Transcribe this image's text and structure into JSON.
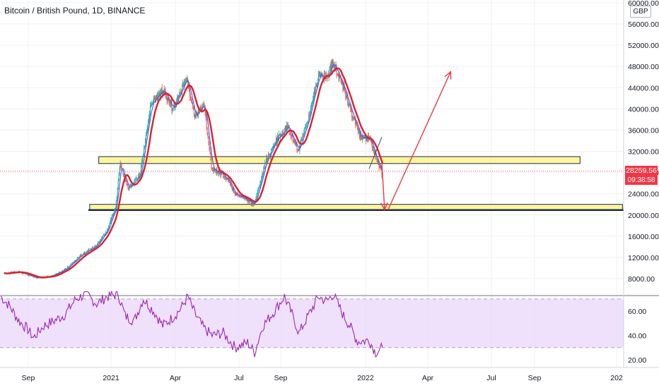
{
  "header": {
    "title": "Bitcoin / British Pound, 1D, BINANCE",
    "currency_button": "GBP"
  },
  "price_tag": {
    "price": "28259.56",
    "countdown": "09:38:58"
  },
  "colors": {
    "up_candle": "#26a69a",
    "down_candle": "#ef5350",
    "ma_fast": "#2962ff",
    "ma_slow": "#e0202a",
    "zone_fill": "#fff59d",
    "zone_border": "#1b2a4a",
    "rsi_line": "#9c27b0",
    "rsi_band": "#e9d7fb",
    "arrow": "#e8394b"
  },
  "chart_data": [
    {
      "type": "candlestick",
      "title": "Bitcoin / British Pound, 1D, BINANCE",
      "ylabel": "GBP",
      "x_tick_labels": [
        "Sep",
        "2021",
        "Apr",
        "Jul",
        "Sep",
        "2022",
        "Apr",
        "Jul",
        "Sep",
        "202"
      ],
      "y_tick_labels": [
        "8000.00",
        "12000.00",
        "16000.00",
        "20000.00",
        "24000.00",
        "28000.00",
        "32000.00",
        "36000.00",
        "40000.00",
        "44000.00",
        "48000.00",
        "52000.00",
        "56000.00",
        "60000.00"
      ],
      "ylim": [
        4500,
        60000
      ],
      "price_path": {
        "dates": [
          "2020-07-25",
          "2020-08-15",
          "2020-09-10",
          "2020-10-01",
          "2020-10-22",
          "2020-11-15",
          "2020-12-05",
          "2020-12-20",
          "2021-01-01",
          "2021-01-08",
          "2021-01-20",
          "2021-02-05",
          "2021-02-21",
          "2021-03-10",
          "2021-03-25",
          "2021-04-13",
          "2021-04-25",
          "2021-05-08",
          "2021-05-19",
          "2021-06-10",
          "2021-06-22",
          "2021-07-20",
          "2021-08-05",
          "2021-08-20",
          "2021-09-06",
          "2021-09-21",
          "2021-10-10",
          "2021-10-20",
          "2021-11-01",
          "2021-11-10",
          "2021-11-25",
          "2021-12-04",
          "2021-12-20",
          "2022-01-01",
          "2022-01-10",
          "2022-01-20"
        ],
        "close": [
          9000,
          9300,
          8200,
          8400,
          9800,
          12700,
          14200,
          17000,
          21500,
          29500,
          25000,
          27500,
          41000,
          43500,
          40000,
          46000,
          38500,
          41000,
          29000,
          27000,
          24000,
          22000,
          30000,
          34000,
          37000,
          32000,
          40500,
          46500,
          45800,
          49000,
          44000,
          40000,
          34500,
          34500,
          30800,
          27500
        ]
      },
      "current_price": 28259.56,
      "moving_averages": [
        {
          "color": "#2962ff",
          "values_follow_price": true
        },
        {
          "color": "#e0202a",
          "values_follow_price": true
        }
      ],
      "zones": [
        {
          "from_date": "2020-12-08",
          "to_date": "2022-10-31",
          "y_top": 31000,
          "y_bottom": 29700
        },
        {
          "from_date": "2020-11-25",
          "to_date": "2022-12-31",
          "y_top": 22000,
          "y_bottom": 21000
        }
      ],
      "arrows": [
        {
          "from": [
            "2022-01-19",
            29800
          ],
          "to": [
            "2022-01-23",
            21000
          ]
        },
        {
          "from": [
            "2022-01-28",
            21000
          ],
          "to": [
            "2022-04-28",
            47000
          ]
        }
      ]
    },
    {
      "type": "line",
      "title": "",
      "ylabel": "",
      "y_tick_labels": [
        "20.00",
        "40.00",
        "60.00"
      ],
      "ylim": [
        14,
        74
      ],
      "levels": [
        70,
        30
      ],
      "rsi": {
        "dates": [
          "2020-07-20",
          "2020-08-02",
          "2020-08-15",
          "2020-08-28",
          "2020-09-05",
          "2020-09-20",
          "2020-10-05",
          "2020-10-20",
          "2020-11-05",
          "2020-11-20",
          "2020-12-05",
          "2020-12-20",
          "2021-01-05",
          "2021-01-15",
          "2021-01-28",
          "2021-02-10",
          "2021-02-25",
          "2021-03-10",
          "2021-03-25",
          "2021-04-05",
          "2021-04-15",
          "2021-04-25",
          "2021-05-08",
          "2021-05-20",
          "2021-06-05",
          "2021-06-22",
          "2021-07-10",
          "2021-07-20",
          "2021-08-01",
          "2021-08-15",
          "2021-09-01",
          "2021-09-10",
          "2021-09-22",
          "2021-10-05",
          "2021-10-20",
          "2021-11-01",
          "2021-11-10",
          "2021-11-25",
          "2021-12-04",
          "2021-12-15",
          "2022-01-01",
          "2022-01-10",
          "2022-01-20"
        ],
        "values": [
          72,
          64,
          52,
          45,
          38,
          48,
          52,
          57,
          70,
          74,
          66,
          72,
          74,
          56,
          52,
          70,
          60,
          48,
          55,
          62,
          72,
          58,
          46,
          40,
          42,
          30,
          34,
          26,
          48,
          58,
          72,
          60,
          42,
          56,
          72,
          68,
          74,
          56,
          48,
          35,
          36,
          26,
          30
        ]
      }
    }
  ]
}
